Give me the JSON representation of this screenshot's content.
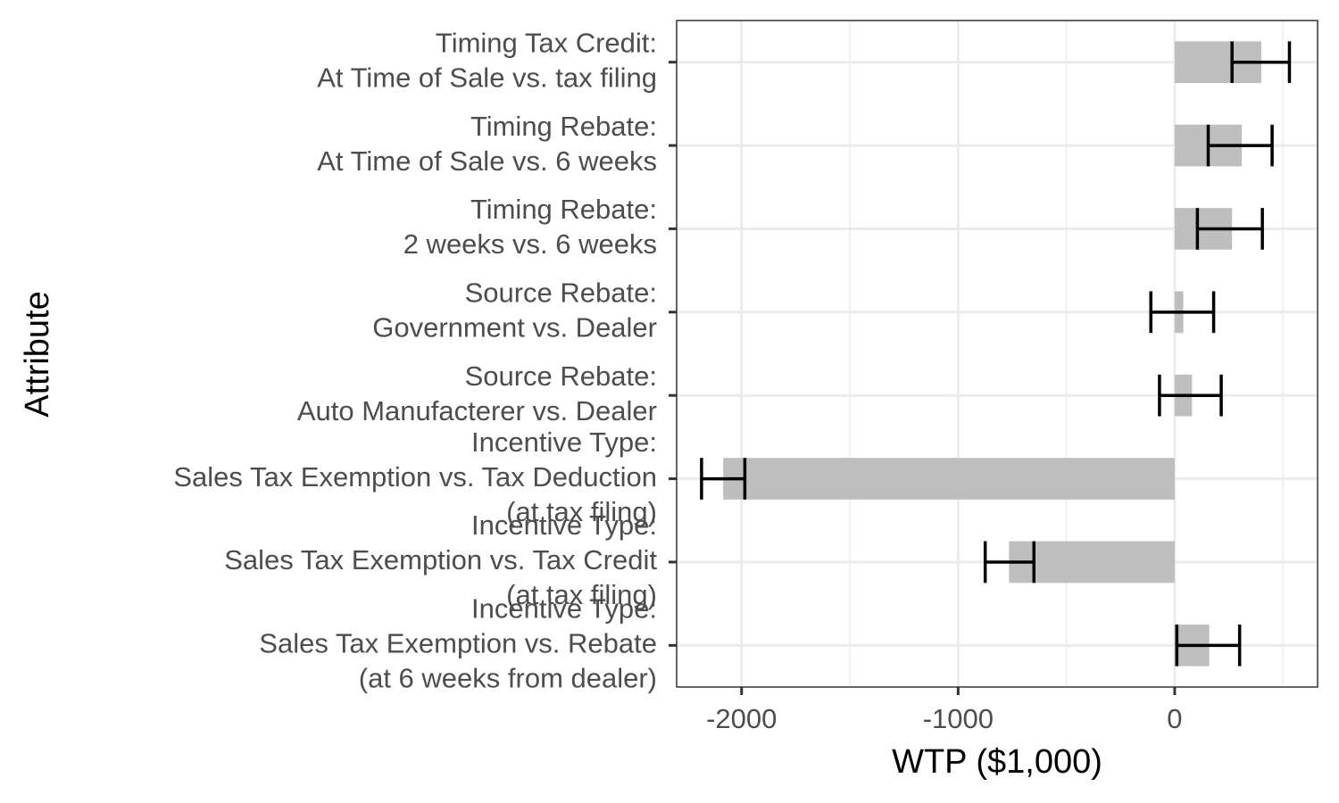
{
  "chart_data": {
    "type": "bar",
    "orientation": "horizontal",
    "title": "",
    "xlabel": "WTP ($1,000)",
    "ylabel": "Attribute",
    "xlim": [
      -2300,
      660
    ],
    "xticks": [
      -2000,
      -1000,
      0
    ],
    "xtick_labels": [
      "-2000",
      "-1000",
      "0"
    ],
    "grid": true,
    "legend": "none",
    "categories": [
      [
        "Timing Tax Credit:",
        "At Time of Sale vs. tax filing"
      ],
      [
        "Timing Rebate:",
        "At Time of Sale vs. 6 weeks"
      ],
      [
        "Timing Rebate:",
        "2 weeks vs. 6 weeks"
      ],
      [
        "Source Rebate:",
        "Government vs. Dealer"
      ],
      [
        "Source Rebate:",
        "Auto Manufacterer vs. Dealer"
      ],
      [
        "Incentive Type:",
        "Sales Tax Exemption vs. Tax Deduction",
        "(at tax filing)"
      ],
      [
        "Incentive Type:",
        "Sales Tax Exemption vs. Tax Credit",
        "(at tax filing)"
      ],
      [
        "Incentive Type:",
        "Sales Tax Exemption vs. Rebate",
        "(at 6 weeks from dealer)"
      ]
    ],
    "values": [
      400,
      310,
      265,
      40,
      80,
      -2085,
      -765,
      160
    ],
    "ci_lower": [
      265,
      155,
      105,
      -110,
      -70,
      -2185,
      -875,
      10
    ],
    "ci_upper": [
      530,
      450,
      405,
      180,
      215,
      -1985,
      -650,
      300
    ],
    "colors": {
      "bar": "#bebebe",
      "errorbar": "#000000",
      "grid": "#ebebeb",
      "panel_border": "#333333"
    }
  }
}
